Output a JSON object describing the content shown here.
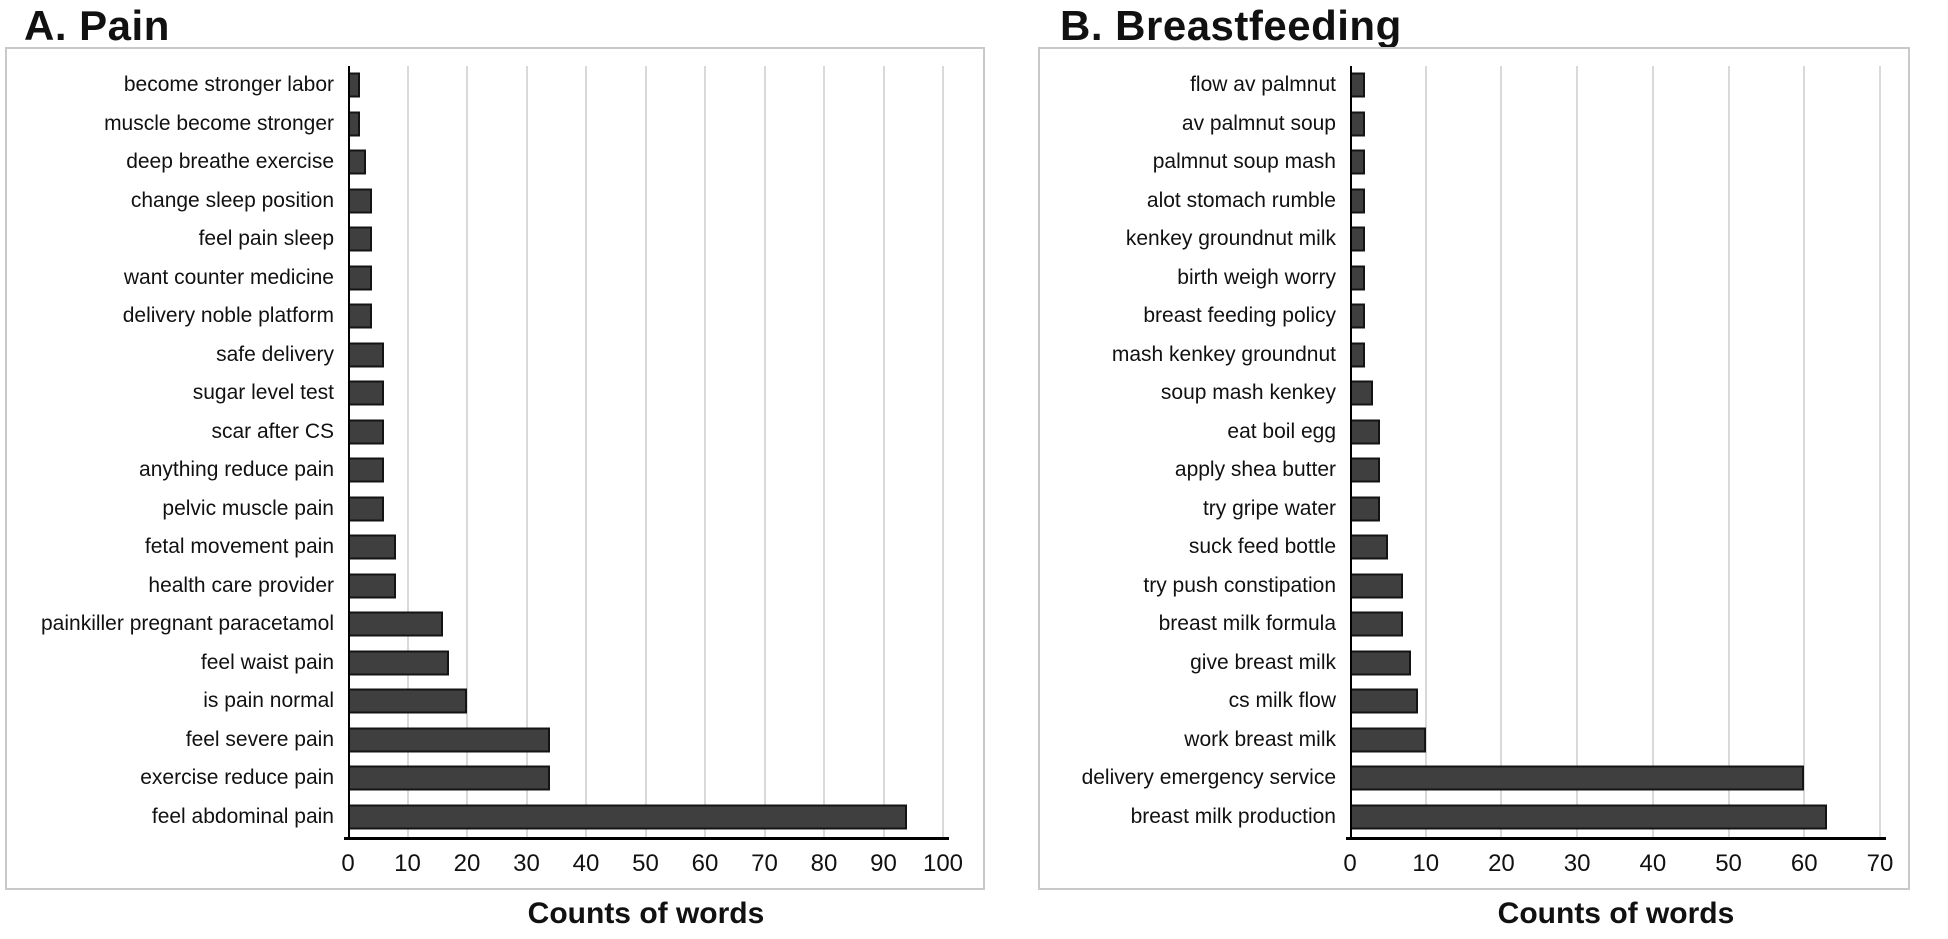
{
  "colors": {
    "bar_fill": "#3f3f3f",
    "bar_border": "#141414",
    "gridline": "#d9d9d9",
    "axis": "#000000",
    "panel_border": "#c9c9c9",
    "background": "#ffffff",
    "text": "#111111"
  },
  "chart_data": [
    {
      "panel_label": "A",
      "title": "A. Pain",
      "xlabel": "Counts of words",
      "type": "bar",
      "orientation": "horizontal",
      "grid": true,
      "xlim": [
        0,
        100
      ],
      "xticks": [
        0,
        10,
        20,
        30,
        40,
        50,
        60,
        70,
        80,
        90,
        100
      ],
      "categories": [
        "become stronger labor",
        "muscle become stronger",
        "deep breathe exercise",
        "change sleep position",
        "feel pain sleep",
        "want counter medicine",
        "delivery noble platform",
        "safe delivery",
        "sugar level test",
        "scar after CS",
        "anything reduce pain",
        "pelvic muscle pain",
        "fetal movement pain",
        "health care provider",
        "painkiller pregnant paracetamol",
        "feel waist pain",
        "is pain normal",
        "feel severe pain",
        "exercise reduce pain",
        "feel abdominal pain"
      ],
      "values": [
        2,
        2,
        3,
        4,
        4,
        4,
        4,
        6,
        6,
        6,
        6,
        6,
        8,
        8,
        16,
        17,
        20,
        34,
        34,
        94
      ]
    },
    {
      "panel_label": "B",
      "title": "B. Breastfeeding",
      "xlabel": "Counts of words",
      "type": "bar",
      "orientation": "horizontal",
      "grid": true,
      "xlim": [
        0,
        70
      ],
      "xticks": [
        0,
        10,
        20,
        30,
        40,
        50,
        60,
        70
      ],
      "categories": [
        "flow av palmnut",
        "av palmnut soup",
        "palmnut soup mash",
        "alot stomach rumble",
        "kenkey groundnut milk",
        "birth weigh worry",
        "breast feeding policy",
        "mash kenkey groundnut",
        "soup mash kenkey",
        "eat boil egg",
        "apply shea butter",
        "try gripe water",
        "suck feed bottle",
        "try push constipation",
        "breast milk formula",
        "give breast milk",
        "cs milk flow",
        "work breast milk",
        "delivery emergency service",
        "breast milk production"
      ],
      "values": [
        2,
        2,
        2,
        2,
        2,
        2,
        2,
        2,
        3,
        4,
        4,
        4,
        5,
        7,
        7,
        8,
        9,
        10,
        60,
        63
      ]
    }
  ]
}
